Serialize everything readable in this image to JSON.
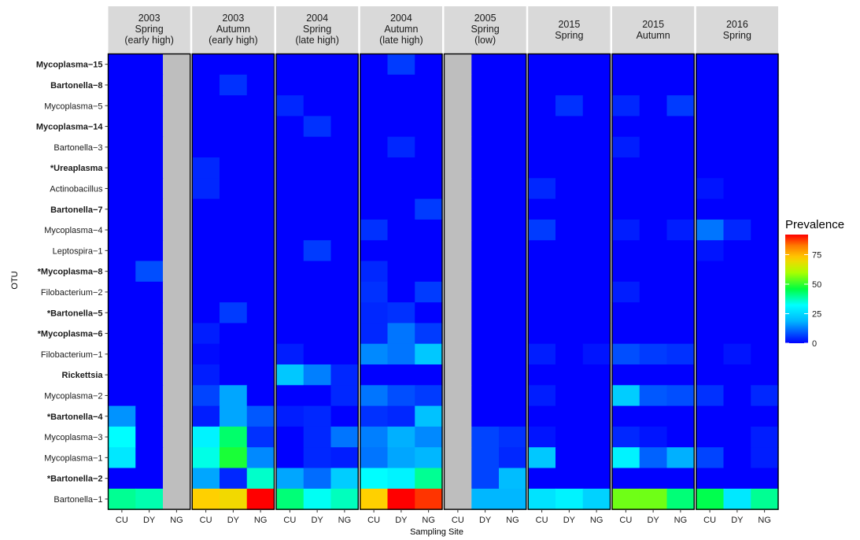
{
  "chart_data": {
    "type": "heatmap",
    "xlabel": "Sampling Site",
    "ylabel": "OTU",
    "legend": {
      "title": "Prevalence",
      "ticks": [
        0,
        25,
        50,
        75
      ],
      "range": [
        0,
        92
      ],
      "placement": "right"
    },
    "sites": [
      "CU",
      "DY",
      "NG"
    ],
    "na_color": "#bebebe",
    "otus": [
      {
        "label": "Mycoplasma−15",
        "bold": true
      },
      {
        "label": "Bartonella−8",
        "bold": true
      },
      {
        "label": "Mycoplasma−5",
        "bold": false
      },
      {
        "label": "Mycoplasma−14",
        "bold": true
      },
      {
        "label": "Bartonella−3",
        "bold": false
      },
      {
        "label": "*Ureaplasma",
        "bold": true
      },
      {
        "label": "Actinobacillus",
        "bold": false
      },
      {
        "label": "Bartonella−7",
        "bold": true
      },
      {
        "label": "Mycoplasma−4",
        "bold": false
      },
      {
        "label": "Leptospira−1",
        "bold": false
      },
      {
        "label": "*Mycoplasma−8",
        "bold": true
      },
      {
        "label": "Filobacterium−2",
        "bold": false
      },
      {
        "label": "*Bartonella−5",
        "bold": true
      },
      {
        "label": "*Mycoplasma−6",
        "bold": true
      },
      {
        "label": "Filobacterium−1",
        "bold": false
      },
      {
        "label": "Rickettsia",
        "bold": true
      },
      {
        "label": "Mycoplasma−2",
        "bold": false
      },
      {
        "label": "*Bartonella−4",
        "bold": true
      },
      {
        "label": "Mycoplasma−3",
        "bold": false
      },
      {
        "label": "Mycoplasma−1",
        "bold": false
      },
      {
        "label": "*Bartonella−2",
        "bold": true
      },
      {
        "label": "Bartonella−1",
        "bold": false
      }
    ],
    "panels": [
      {
        "title": [
          "2003",
          "Spring",
          "(early high)"
        ],
        "values": [
          [
            0,
            0,
            null
          ],
          [
            0,
            0,
            null
          ],
          [
            0,
            0,
            null
          ],
          [
            0,
            0,
            null
          ],
          [
            0,
            0,
            null
          ],
          [
            0,
            0,
            null
          ],
          [
            0,
            0,
            null
          ],
          [
            0,
            0,
            null
          ],
          [
            0,
            0,
            null
          ],
          [
            0,
            0,
            null
          ],
          [
            0,
            8,
            null
          ],
          [
            0,
            0,
            null
          ],
          [
            0,
            0,
            null
          ],
          [
            0,
            0,
            null
          ],
          [
            0,
            0,
            null
          ],
          [
            0,
            0,
            null
          ],
          [
            0,
            0,
            null
          ],
          [
            15,
            0,
            null
          ],
          [
            32,
            0,
            null
          ],
          [
            28,
            0,
            null
          ],
          [
            0,
            0,
            null
          ],
          [
            40,
            38,
            null
          ]
        ]
      },
      {
        "title": [
          "2003",
          "Autumn",
          "(early high)"
        ],
        "values": [
          [
            0,
            0,
            0
          ],
          [
            0,
            5,
            0
          ],
          [
            0,
            0,
            0
          ],
          [
            0,
            0,
            0
          ],
          [
            0,
            0,
            0
          ],
          [
            4,
            0,
            0
          ],
          [
            4,
            0,
            0
          ],
          [
            0,
            0,
            0
          ],
          [
            0,
            0,
            0
          ],
          [
            0,
            0,
            0
          ],
          [
            0,
            0,
            0
          ],
          [
            0,
            0,
            0
          ],
          [
            0,
            6,
            0
          ],
          [
            3,
            0,
            0
          ],
          [
            1,
            0,
            0
          ],
          [
            3,
            0,
            0
          ],
          [
            7,
            17,
            0
          ],
          [
            3,
            17,
            9
          ],
          [
            30,
            43,
            5
          ],
          [
            34,
            48,
            14
          ],
          [
            17,
            4,
            36
          ],
          [
            72,
            70,
            92
          ]
        ]
      },
      {
        "title": [
          "2004",
          "Spring",
          "(late high)"
        ],
        "values": [
          [
            0,
            0,
            0
          ],
          [
            0,
            0,
            0
          ],
          [
            4,
            0,
            0
          ],
          [
            0,
            5,
            0
          ],
          [
            0,
            0,
            0
          ],
          [
            0,
            0,
            0
          ],
          [
            0,
            0,
            0
          ],
          [
            0,
            0,
            0
          ],
          [
            0,
            0,
            0
          ],
          [
            0,
            6,
            0
          ],
          [
            0,
            0,
            0
          ],
          [
            0,
            0,
            0
          ],
          [
            0,
            0,
            0
          ],
          [
            0,
            0,
            0
          ],
          [
            3,
            0,
            0
          ],
          [
            22,
            13,
            4
          ],
          [
            0,
            0,
            4
          ],
          [
            3,
            4,
            0
          ],
          [
            0,
            4,
            12
          ],
          [
            0,
            4,
            3
          ],
          [
            17,
            11,
            23
          ],
          [
            42,
            33,
            37
          ]
        ]
      },
      {
        "title": [
          "2004",
          "Autumn",
          "(late high)"
        ],
        "values": [
          [
            0,
            6,
            0
          ],
          [
            0,
            0,
            0
          ],
          [
            0,
            0,
            0
          ],
          [
            0,
            0,
            0
          ],
          [
            0,
            4,
            0
          ],
          [
            0,
            0,
            0
          ],
          [
            0,
            0,
            0
          ],
          [
            0,
            0,
            6
          ],
          [
            5,
            0,
            0
          ],
          [
            0,
            0,
            0
          ],
          [
            4,
            0,
            0
          ],
          [
            5,
            0,
            6
          ],
          [
            4,
            5,
            0
          ],
          [
            4,
            12,
            6
          ],
          [
            14,
            12,
            22
          ],
          [
            0,
            0,
            0
          ],
          [
            12,
            8,
            6
          ],
          [
            5,
            4,
            21
          ],
          [
            13,
            18,
            14
          ],
          [
            12,
            17,
            19
          ],
          [
            32,
            30,
            40
          ],
          [
            72,
            92,
            88
          ]
        ]
      },
      {
        "title": [
          "2005",
          "Spring",
          "(low)"
        ],
        "values": [
          [
            null,
            0,
            0
          ],
          [
            null,
            0,
            0
          ],
          [
            null,
            0,
            0
          ],
          [
            null,
            0,
            0
          ],
          [
            null,
            0,
            0
          ],
          [
            null,
            0,
            0
          ],
          [
            null,
            0,
            0
          ],
          [
            null,
            0,
            0
          ],
          [
            null,
            0,
            0
          ],
          [
            null,
            0,
            0
          ],
          [
            null,
            0,
            0
          ],
          [
            null,
            0,
            0
          ],
          [
            null,
            0,
            0
          ],
          [
            null,
            0,
            0
          ],
          [
            null,
            0,
            0
          ],
          [
            null,
            0,
            0
          ],
          [
            null,
            0,
            0
          ],
          [
            null,
            0,
            0
          ],
          [
            null,
            7,
            5
          ],
          [
            null,
            7,
            4
          ],
          [
            null,
            7,
            20
          ],
          [
            null,
            19,
            19
          ]
        ]
      },
      {
        "title": [
          "2015",
          "Spring"
        ],
        "values": [
          [
            0,
            0,
            0
          ],
          [
            0,
            0,
            0
          ],
          [
            0,
            5,
            0
          ],
          [
            0,
            0,
            0
          ],
          [
            0,
            0,
            0
          ],
          [
            0,
            0,
            0
          ],
          [
            4,
            0,
            0
          ],
          [
            0,
            0,
            0
          ],
          [
            6,
            0,
            0
          ],
          [
            0,
            0,
            0
          ],
          [
            0,
            0,
            0
          ],
          [
            0,
            0,
            0
          ],
          [
            0,
            0,
            0
          ],
          [
            0,
            0,
            0
          ],
          [
            3,
            0,
            2
          ],
          [
            0,
            0,
            0
          ],
          [
            3,
            0,
            0
          ],
          [
            0,
            0,
            0
          ],
          [
            2,
            0,
            0
          ],
          [
            22,
            0,
            0
          ],
          [
            0,
            0,
            0
          ],
          [
            27,
            30,
            24
          ]
        ]
      },
      {
        "title": [
          "2015",
          "Autumn"
        ],
        "values": [
          [
            0,
            0,
            0
          ],
          [
            0,
            0,
            0
          ],
          [
            4,
            0,
            6
          ],
          [
            0,
            0,
            0
          ],
          [
            3,
            0,
            0
          ],
          [
            0,
            0,
            0
          ],
          [
            0,
            0,
            0
          ],
          [
            0,
            0,
            0
          ],
          [
            3,
            0,
            3
          ],
          [
            0,
            0,
            0
          ],
          [
            0,
            0,
            0
          ],
          [
            3,
            0,
            0
          ],
          [
            0,
            0,
            0
          ],
          [
            0,
            0,
            0
          ],
          [
            8,
            6,
            5
          ],
          [
            0,
            0,
            0
          ],
          [
            23,
            9,
            8
          ],
          [
            0,
            0,
            0
          ],
          [
            4,
            2,
            0
          ],
          [
            30,
            10,
            18
          ],
          [
            0,
            0,
            0
          ],
          [
            55,
            55,
            42
          ]
        ]
      },
      {
        "title": [
          "2016",
          "Spring"
        ],
        "values": [
          [
            0,
            0,
            0
          ],
          [
            0,
            0,
            0
          ],
          [
            0,
            0,
            0
          ],
          [
            0,
            0,
            0
          ],
          [
            0,
            0,
            0
          ],
          [
            0,
            0,
            0
          ],
          [
            2,
            0,
            0
          ],
          [
            0,
            0,
            0
          ],
          [
            12,
            4,
            0
          ],
          [
            2,
            0,
            0
          ],
          [
            0,
            0,
            0
          ],
          [
            0,
            0,
            0
          ],
          [
            0,
            0,
            0
          ],
          [
            0,
            0,
            0
          ],
          [
            0,
            2,
            0
          ],
          [
            0,
            0,
            0
          ],
          [
            5,
            0,
            4
          ],
          [
            0,
            0,
            0
          ],
          [
            0,
            0,
            3
          ],
          [
            7,
            0,
            3
          ],
          [
            0,
            0,
            0
          ],
          [
            45,
            28,
            40
          ]
        ]
      }
    ]
  }
}
